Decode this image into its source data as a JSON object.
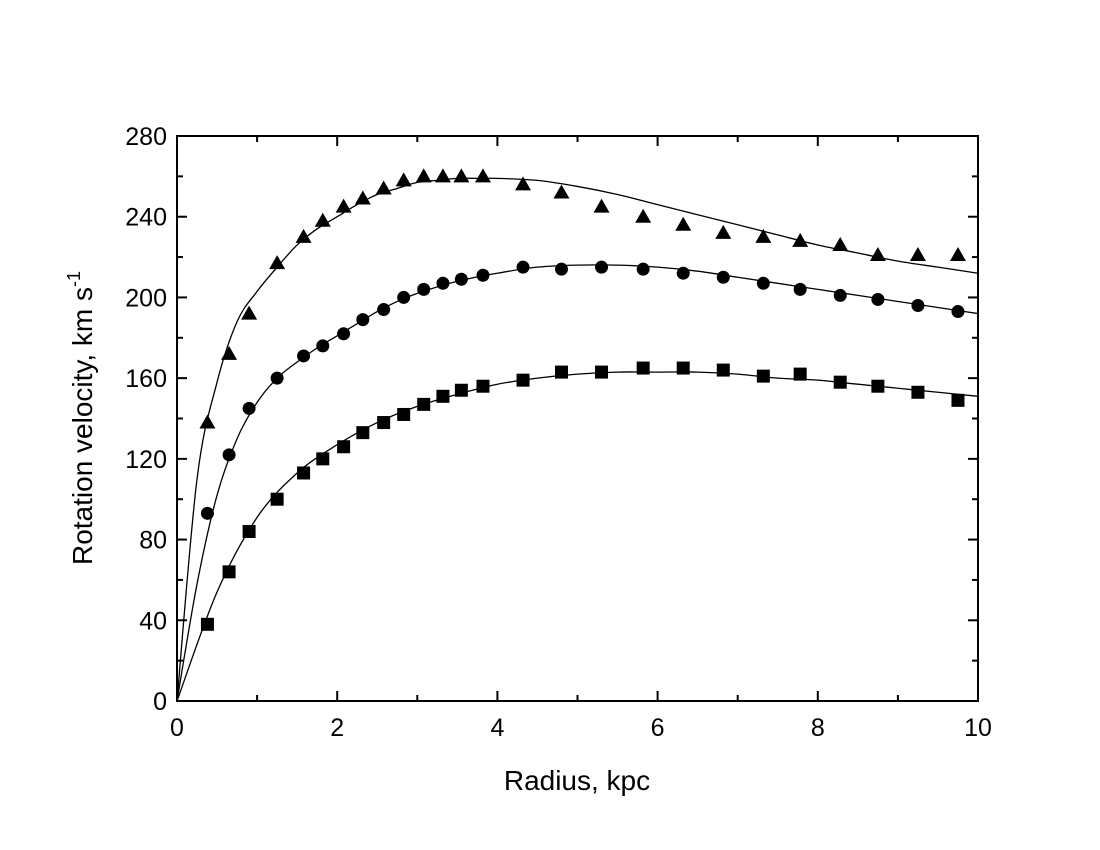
{
  "chart_data": {
    "type": "scatter",
    "title": "",
    "xlabel": "Radius, kpc",
    "ylabel_main": "Rotation velocity, km s",
    "ylabel_sup": "-1",
    "xlim": [
      0,
      10
    ],
    "ylim": [
      0,
      280
    ],
    "x_ticks": [
      0,
      2,
      4,
      6,
      8,
      10
    ],
    "y_ticks": [
      0,
      40,
      80,
      120,
      160,
      200,
      240,
      280
    ],
    "x_tick_labels": [
      "0",
      "2",
      "4",
      "6",
      "8",
      "10"
    ],
    "y_tick_labels": [
      "0",
      "40",
      "80",
      "120",
      "160",
      "200",
      "240",
      "280"
    ],
    "minor_ticks": true,
    "grid": false,
    "legend": "none",
    "series": [
      {
        "marker": "triangle",
        "x": [
          0.38,
          0.65,
          0.9,
          1.25,
          1.58,
          1.82,
          2.08,
          2.32,
          2.58,
          2.83,
          3.08,
          3.32,
          3.55,
          3.82,
          4.32,
          4.8,
          5.3,
          5.82,
          6.32,
          6.82,
          7.32,
          7.78,
          8.28,
          8.75,
          9.25,
          9.75
        ],
        "y": [
          138,
          172,
          192,
          217,
          230,
          238,
          245,
          249,
          254,
          258,
          260,
          260,
          260,
          260,
          256,
          252,
          245,
          240,
          236,
          232,
          230,
          228,
          226,
          221,
          221,
          221
        ]
      },
      {
        "marker": "circle",
        "x": [
          0.38,
          0.65,
          0.9,
          1.25,
          1.58,
          1.82,
          2.08,
          2.32,
          2.58,
          2.83,
          3.08,
          3.32,
          3.55,
          3.82,
          4.32,
          4.8,
          5.3,
          5.82,
          6.32,
          6.82,
          7.32,
          7.78,
          8.28,
          8.75,
          9.25,
          9.75
        ],
        "y": [
          93,
          122,
          145,
          160,
          171,
          176,
          182,
          189,
          194,
          200,
          204,
          207,
          209,
          211,
          215,
          214,
          215,
          214,
          212,
          210,
          207,
          204,
          201,
          199,
          196,
          193
        ]
      },
      {
        "marker": "square",
        "x": [
          0.38,
          0.65,
          0.9,
          1.25,
          1.58,
          1.82,
          2.08,
          2.32,
          2.58,
          2.83,
          3.08,
          3.32,
          3.55,
          3.82,
          4.32,
          4.8,
          5.3,
          5.82,
          6.32,
          6.82,
          7.32,
          7.78,
          8.28,
          8.75,
          9.25,
          9.75
        ],
        "y": [
          38,
          64,
          84,
          100,
          113,
          120,
          126,
          133,
          138,
          142,
          147,
          151,
          154,
          156,
          159,
          163,
          163,
          165,
          165,
          164,
          161,
          162,
          158,
          156,
          153,
          149
        ]
      }
    ],
    "fit_curves": [
      {
        "x": [
          0,
          0.25,
          0.5,
          0.75,
          1.0,
          1.25,
          1.5,
          1.75,
          2.0,
          2.25,
          2.5,
          2.75,
          3.0,
          3.25,
          3.5,
          3.75,
          4.0,
          4.5,
          5.0,
          5.5,
          6.0,
          6.5,
          7.0,
          7.5,
          8.0,
          8.5,
          9.0,
          9.5,
          10.0
        ],
        "y": [
          0,
          110,
          158,
          188,
          203,
          215,
          226,
          234,
          240,
          246,
          251,
          254,
          257,
          258,
          259,
          259,
          259,
          258,
          255,
          251,
          246,
          241,
          236,
          231,
          226,
          222,
          218,
          215,
          212
        ]
      },
      {
        "x": [
          0,
          0.25,
          0.5,
          0.75,
          1.0,
          1.25,
          1.5,
          1.75,
          2.0,
          2.25,
          2.5,
          2.75,
          3.0,
          3.5,
          4.0,
          4.5,
          5.0,
          5.5,
          6.0,
          6.5,
          7.0,
          7.5,
          8.0,
          8.5,
          9.0,
          9.5,
          10.0
        ],
        "y": [
          0,
          58,
          102,
          130,
          148,
          160,
          168,
          175,
          181,
          187,
          193,
          198,
          202,
          208,
          212,
          215,
          216,
          216,
          215,
          213,
          210,
          207,
          204,
          201,
          198,
          195,
          192
        ]
      },
      {
        "x": [
          0,
          0.5,
          1.0,
          1.5,
          2.0,
          2.5,
          3.0,
          3.5,
          4.0,
          4.5,
          5.0,
          5.5,
          6.0,
          6.5,
          7.0,
          7.5,
          8.0,
          8.5,
          9.0,
          9.5,
          10.0
        ],
        "y": [
          0,
          54,
          91,
          113,
          127,
          138,
          146,
          152,
          157,
          160,
          162,
          163,
          163,
          163,
          162,
          160,
          159,
          157,
          155,
          153,
          151
        ]
      }
    ]
  }
}
